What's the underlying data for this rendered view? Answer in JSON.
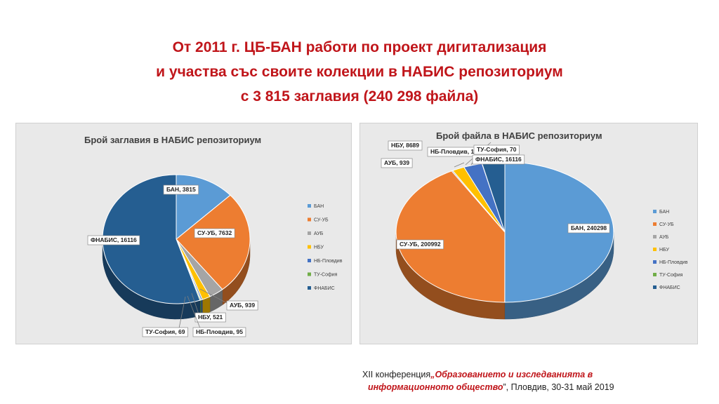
{
  "header": {
    "line1": "От 2011 г. ЦБ-БАН работи по проект дигитализация",
    "line2": "и участва със своите колекции в НАБИС репозиториум",
    "line3": "с 3 815 заглавия (240 298 файла)"
  },
  "chart_data": [
    {
      "type": "pie",
      "title": "Брой заглавия в НАБИС репозиториум",
      "legend": "right",
      "slices": [
        {
          "name": "БАН",
          "value": 3815,
          "label": "БАН, 3815",
          "color": "#5b9bd5"
        },
        {
          "name": "СУ-УБ",
          "value": 7632,
          "label": "СУ-УБ, 7632",
          "color": "#ed7d31"
        },
        {
          "name": "АУБ",
          "value": 939,
          "label": "АУБ, 939",
          "color": "#a5a5a5"
        },
        {
          "name": "НБУ",
          "value": 521,
          "label": "НБУ, 521",
          "color": "#ffc000"
        },
        {
          "name": "НБ-Пловдив",
          "value": 95,
          "label": "НБ-Пловдив, 95",
          "color": "#4472c4"
        },
        {
          "name": "ТУ-София",
          "value": 69,
          "label": "ТУ-София, 69",
          "color": "#70ad47"
        },
        {
          "name": "ФНАБИС",
          "value": 16116,
          "label": "ФНАБИС, 16116",
          "color": "#255e91"
        }
      ]
    },
    {
      "type": "pie",
      "title": "Брой файла в НАБИС репозиториум",
      "legend": "right",
      "slices": [
        {
          "name": "БАН",
          "value": 240298,
          "label": "БАН, 240298",
          "color": "#5b9bd5"
        },
        {
          "name": "СУ-УБ",
          "value": 200992,
          "label": "СУ-УБ, 200992",
          "color": "#ed7d31"
        },
        {
          "name": "АУБ",
          "value": 939,
          "label": "АУБ, 939",
          "color": "#a5a5a5"
        },
        {
          "name": "НБУ",
          "value": 8689,
          "label": "НБУ, 8689",
          "color": "#ffc000"
        },
        {
          "name": "НБ-Пловдив",
          "value": 13257,
          "label": "НБ-Пловдив, 13257",
          "color": "#4472c4"
        },
        {
          "name": "ТУ-София",
          "value": 70,
          "label": "ТУ-София, 70",
          "color": "#70ad47"
        },
        {
          "name": "ФНАБИС",
          "value": 16116,
          "label": "ФНАБИС, 16116",
          "color": "#255e91"
        }
      ]
    }
  ],
  "footer": {
    "prefix": "XII конференция",
    "quote_open": "„",
    "highlight1": "Образованието и изследванията в",
    "highlight2": "информационното общество",
    "suffix": "”, Пловдив, 30-31 май 2019"
  }
}
